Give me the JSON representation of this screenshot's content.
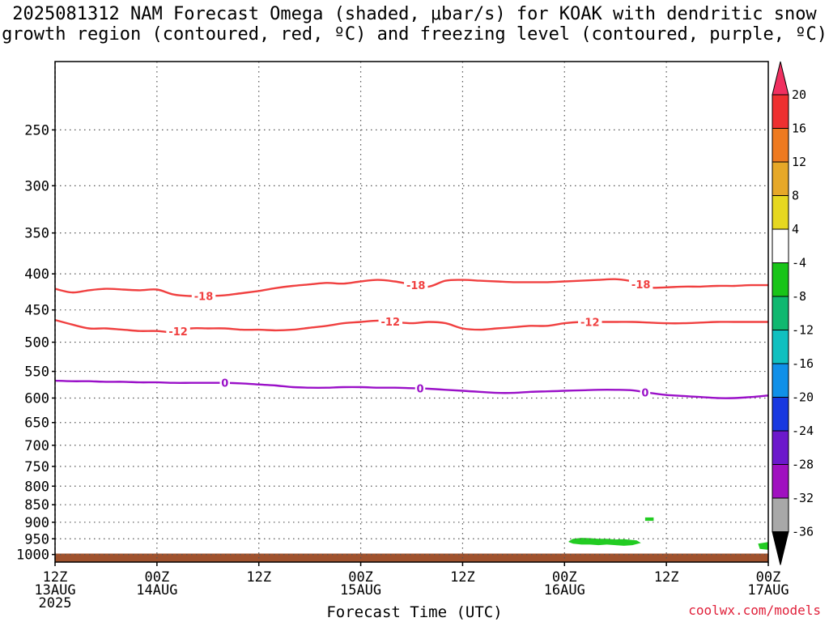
{
  "title": {
    "line1": "2025081312 NAM Forecast Omega (shaded, μbar/s) for KOAK with dendritic snow",
    "line2": "growth region (contoured, red, ºC) and freezing level (contoured, purple, ºC)"
  },
  "xlabel": "Forecast Time (UTC)",
  "watermark": "coolwx.com/models",
  "chart_data": {
    "type": "heatmap",
    "title": "2025081312 NAM Forecast Omega (shaded, μbar/s) for KOAK with dendritic snow growth region (contoured, red, ºC) and freezing level (contoured, purple, ºC)",
    "xlabel": "Forecast Time (UTC)",
    "ylabel": "",
    "x_unit": "forecast hour from 2025-08-13 12Z",
    "xlim": [
      0,
      84
    ],
    "ylim": [
      1025,
      200
    ],
    "y_scale": "log-pressure (inverted)",
    "grid": true,
    "x_ticks": [
      {
        "x": 0,
        "line1": "12Z",
        "line2": "13AUG",
        "line3": "2025"
      },
      {
        "x": 12,
        "line1": "00Z",
        "line2": "14AUG",
        "line3": ""
      },
      {
        "x": 24,
        "line1": "12Z",
        "line2": "",
        "line3": ""
      },
      {
        "x": 36,
        "line1": "00Z",
        "line2": "15AUG",
        "line3": ""
      },
      {
        "x": 48,
        "line1": "12Z",
        "line2": "",
        "line3": ""
      },
      {
        "x": 60,
        "line1": "00Z",
        "line2": "16AUG",
        "line3": ""
      },
      {
        "x": 72,
        "line1": "12Z",
        "line2": "",
        "line3": ""
      },
      {
        "x": 84,
        "line1": "00Z",
        "line2": "17AUG",
        "line3": ""
      }
    ],
    "y_ticks": [
      250,
      300,
      350,
      400,
      450,
      500,
      550,
      600,
      650,
      700,
      750,
      800,
      850,
      900,
      950,
      1000
    ],
    "contours": [
      {
        "level": -18,
        "label": "-18",
        "color": "#f04040",
        "x": [
          0,
          2,
          4,
          6,
          8,
          10,
          12,
          14,
          16,
          18,
          20,
          22,
          24,
          26,
          28,
          30,
          32,
          34,
          36,
          38,
          40,
          42,
          44,
          46,
          48,
          50,
          52,
          54,
          56,
          58,
          60,
          62,
          64,
          66,
          68,
          70,
          72,
          74,
          76,
          78,
          80,
          82,
          84
        ],
        "p": [
          420,
          425,
          422,
          420,
          421,
          422,
          421,
          428,
          430,
          430,
          429,
          426,
          423,
          419,
          416,
          414,
          412,
          413,
          410,
          408,
          410,
          414,
          417,
          409,
          408,
          409,
          410,
          411,
          411,
          411,
          410,
          409,
          408,
          407,
          410,
          418,
          418,
          417,
          417,
          416,
          416,
          415,
          415
        ],
        "labels_at": [
          17.5,
          42.5,
          69
        ]
      },
      {
        "level": -12,
        "label": "-12",
        "color": "#f04040",
        "x": [
          0,
          2,
          4,
          6,
          8,
          10,
          12,
          14,
          16,
          18,
          20,
          22,
          24,
          26,
          28,
          30,
          32,
          34,
          36,
          38,
          40,
          42,
          44,
          46,
          48,
          50,
          52,
          54,
          56,
          58,
          60,
          62,
          64,
          66,
          68,
          70,
          72,
          74,
          76,
          78,
          80,
          82,
          84
        ],
        "p": [
          465,
          472,
          478,
          478,
          480,
          482,
          482,
          484,
          478,
          478,
          478,
          480,
          480,
          481,
          480,
          477,
          474,
          470,
          468,
          466,
          468,
          470,
          468,
          470,
          478,
          480,
          478,
          476,
          474,
          474,
          470,
          468,
          468,
          468,
          468,
          469,
          470,
          470,
          469,
          468,
          468,
          468,
          468
        ],
        "labels_at": [
          14.5,
          39.5,
          63
        ]
      },
      {
        "level": 0,
        "label": "0",
        "color": "#9a10c8",
        "x": [
          0,
          2,
          4,
          6,
          8,
          10,
          12,
          14,
          16,
          18,
          20,
          22,
          24,
          26,
          28,
          30,
          32,
          34,
          36,
          38,
          40,
          42,
          44,
          46,
          48,
          50,
          52,
          54,
          56,
          58,
          60,
          62,
          64,
          66,
          68,
          70,
          72,
          74,
          76,
          78,
          80,
          82,
          84
        ],
        "p": [
          567,
          568,
          568,
          569,
          569,
          570,
          570,
          571,
          571,
          571,
          571,
          572,
          574,
          576,
          579,
          580,
          580,
          579,
          579,
          580,
          580,
          581,
          582,
          584,
          586,
          588,
          590,
          590,
          588,
          587,
          586,
          585,
          584,
          584,
          585,
          590,
          594,
          596,
          598,
          600,
          600,
          598,
          595
        ],
        "labels_at": [
          20,
          43,
          69.5
        ]
      }
    ],
    "shading": [
      {
        "color": "#22cc22",
        "range": [
          -8,
          -4
        ],
        "x": [
          60.5,
          61,
          62,
          63,
          64,
          65,
          66,
          67,
          68.5,
          69,
          68,
          67,
          66,
          65,
          64,
          63,
          62,
          61,
          60.5
        ],
        "p": [
          958,
          950,
          947,
          948,
          950,
          950,
          952,
          951,
          955,
          963,
          970,
          972,
          970,
          968,
          970,
          968,
          968,
          965,
          960
        ]
      },
      {
        "color": "#22cc22",
        "range": [
          -8,
          -4
        ],
        "x": [
          69.5,
          70.5,
          70.5,
          69.5
        ],
        "p": [
          886,
          886,
          896,
          896
        ]
      },
      {
        "color": "#22cc22",
        "range": [
          -8,
          -4
        ],
        "x": [
          82.8,
          84,
          84,
          83
        ],
        "p": [
          965,
          960,
          985,
          982
        ]
      }
    ],
    "terrain": {
      "color": "#a0522d",
      "top_p": 997
    },
    "colorbar": {
      "ticks": [
        "20",
        "16",
        "12",
        "8",
        "4",
        "-4",
        "-8",
        "-12",
        "-16",
        "-20",
        "-24",
        "-28",
        "-32",
        "-36"
      ],
      "colors": [
        "#f03060",
        "#ee3030",
        "#ee7a20",
        "#e6a828",
        "#e6d820",
        "#ffffff",
        "#18c418",
        "#10b870",
        "#10c0c0",
        "#1090e8",
        "#1838e0",
        "#6c18cc",
        "#a010c0",
        "#a8a8a8",
        "#000000"
      ]
    }
  }
}
